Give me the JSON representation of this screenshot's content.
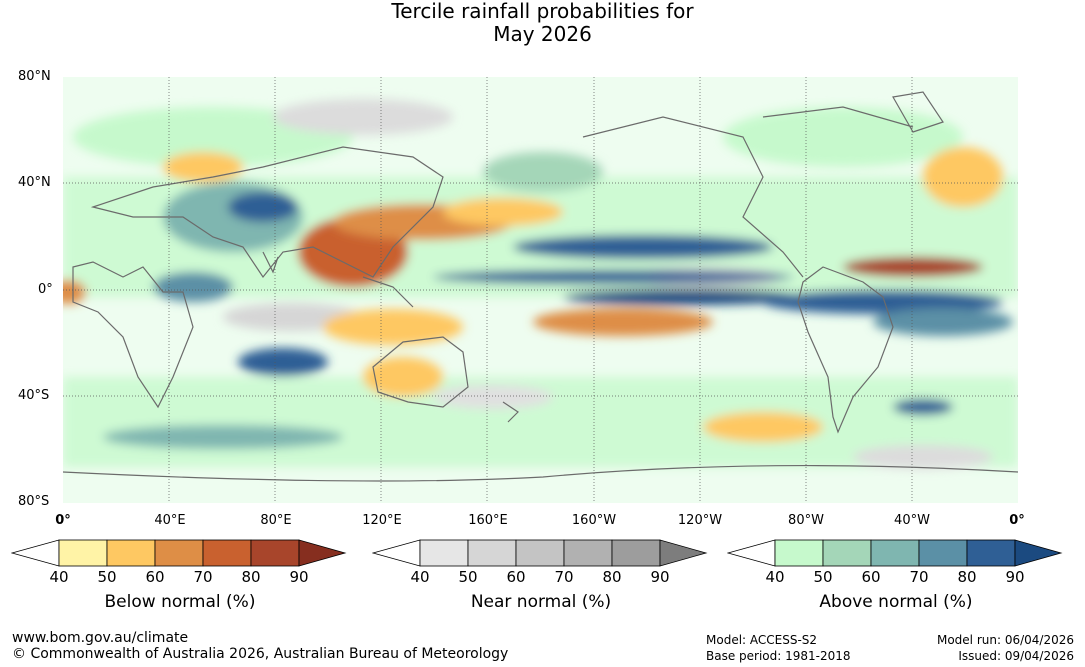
{
  "title": {
    "line1": "Tercile rainfall probabilities for",
    "line2": "May 2026"
  },
  "map": {
    "lat_labels": [
      "80°N",
      "40°N",
      "0°",
      "40°S",
      "80°S"
    ],
    "lon_labels": [
      "0°",
      "40°E",
      "80°E",
      "120°E",
      "160°E",
      "160°W",
      "120°W",
      "80°W",
      "40°W",
      "0°"
    ]
  },
  "legends": [
    {
      "caption": "Below normal (%)",
      "ticks": [
        "40",
        "50",
        "60",
        "70",
        "80",
        "90"
      ],
      "colors": [
        "#fff3a6",
        "#fec862",
        "#de8e46",
        "#c9612f",
        "#a8452b",
        "#862e1f"
      ]
    },
    {
      "caption": "Near normal (%)",
      "ticks": [
        "40",
        "50",
        "60",
        "70",
        "80",
        "90"
      ],
      "colors": [
        "#e6e6e6",
        "#d6d6d6",
        "#c4c4c4",
        "#b1b1b1",
        "#9d9d9d",
        "#7d7d7d"
      ]
    },
    {
      "caption": "Above normal (%)",
      "ticks": [
        "40",
        "50",
        "60",
        "70",
        "80",
        "90"
      ],
      "colors": [
        "#c6f9cc",
        "#a4d6b8",
        "#7fb6b0",
        "#5b90a6",
        "#2f5f95",
        "#1b4a80"
      ]
    }
  ],
  "footer": {
    "website": "www.bom.gov.au/climate",
    "copyright": "© Commonwealth of Australia 2026, Australian Bureau of Meteorology",
    "model": "Model: ACCESS-S2",
    "base_period": "Base period: 1981-2018",
    "model_run": "Model run: 06/04/2026",
    "issued": "Issued: 09/04/2026"
  }
}
